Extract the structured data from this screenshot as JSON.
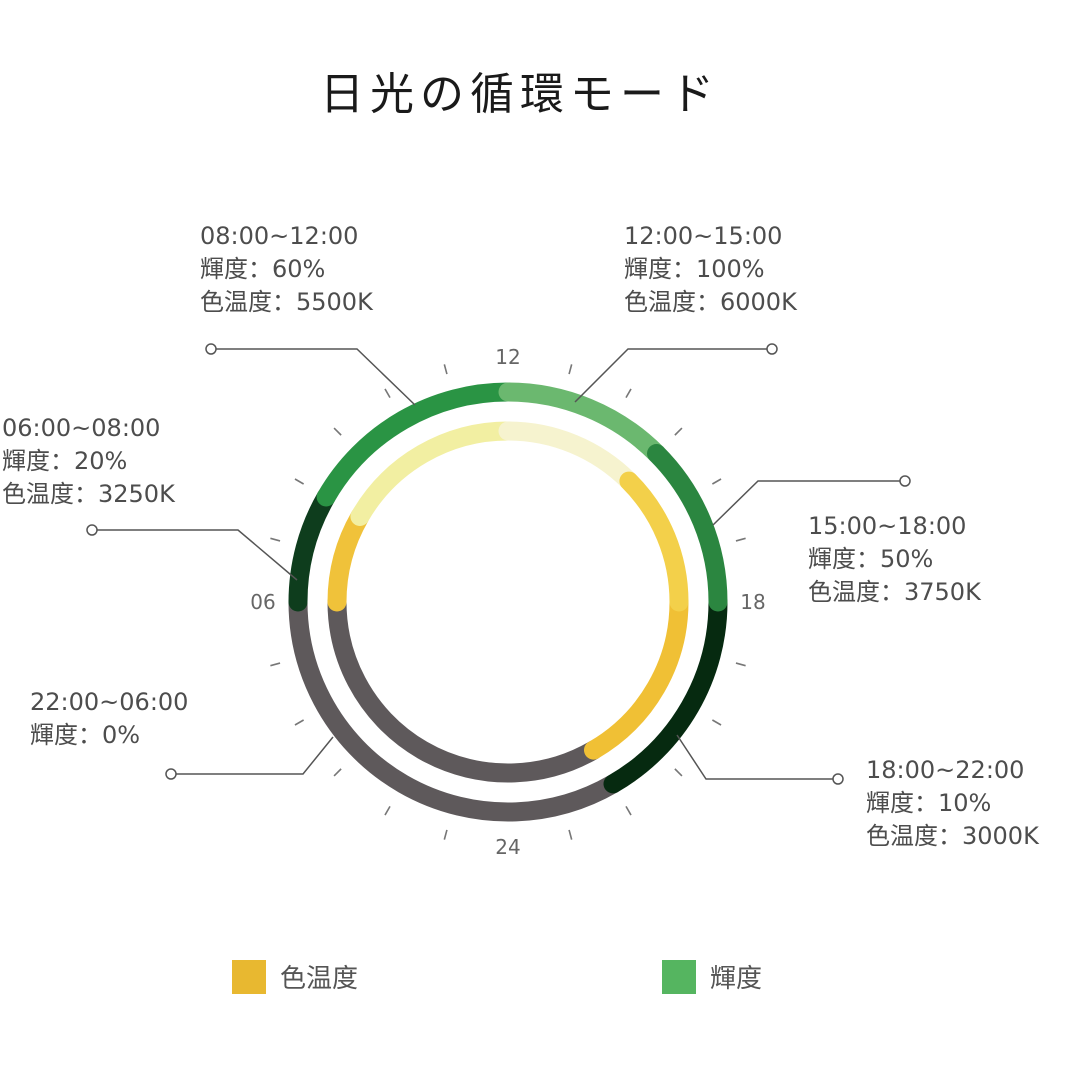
{
  "title": "日光の循環モード",
  "chart_data": {
    "type": "radial",
    "title": "日光の循環モード",
    "hour_labels": [
      "12",
      "18",
      "24",
      "06"
    ],
    "rings": {
      "outer": "輝度",
      "inner": "色温度"
    },
    "off_color": "#5e595b",
    "segments": [
      {
        "range": "06:00~08:00",
        "start": 6,
        "end": 8,
        "brightness_label": "輝度：20%",
        "temp_label": "色温度：3250K",
        "brightness": 20,
        "color_temp": 3250,
        "outer_color": "#0e3d1d",
        "inner_color": "#f0c23a"
      },
      {
        "range": "08:00~12:00",
        "start": 8,
        "end": 12,
        "brightness_label": "輝度：60%",
        "temp_label": "色温度：5500K",
        "brightness": 60,
        "color_temp": 5500,
        "outer_color": "#2a9444",
        "inner_color": "#f2efa2"
      },
      {
        "range": "12:00~15:00",
        "start": 12,
        "end": 15,
        "brightness_label": "輝度：100%",
        "temp_label": "色温度：6000K",
        "brightness": 100,
        "color_temp": 6000,
        "outer_color": "#6bb86f",
        "inner_color": "#f6f3cf"
      },
      {
        "range": "15:00~18:00",
        "start": 15,
        "end": 18,
        "brightness_label": "輝度：50%",
        "temp_label": "色温度：3750K",
        "brightness": 50,
        "color_temp": 3750,
        "outer_color": "#2b8640",
        "inner_color": "#f3d04a"
      },
      {
        "range": "18:00~22:00",
        "start": 18,
        "end": 22,
        "brightness_label": "輝度：10%",
        "temp_label": "色温度：3000K",
        "brightness": 10,
        "color_temp": 3000,
        "outer_color": "#062a10",
        "inner_color": "#f0c035"
      },
      {
        "range": "22:00~06:00",
        "start": 22,
        "end": 30,
        "brightness_label": "輝度：0%",
        "temp_label": "",
        "brightness": 0,
        "color_temp": null,
        "outer_color": "#5e595b",
        "inner_color": "#5e595b"
      }
    ],
    "legend": [
      {
        "label": "色温度",
        "color": "#e8b830"
      },
      {
        "label": "輝度",
        "color": "#55b560"
      }
    ],
    "legend_placement": "bottom"
  }
}
